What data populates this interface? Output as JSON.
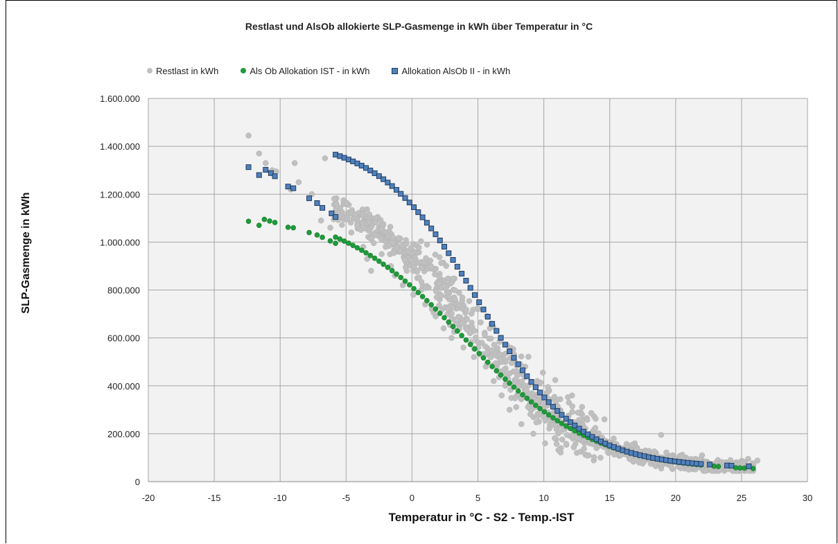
{
  "chart_data": {
    "type": "scatter",
    "title": "Restlast und AlsOb allokierte SLP-Gasmenge in kWh über Temperatur in °C",
    "xlabel": "Temperatur in °C - S2 - Temp.-IST",
    "ylabel": "SLP-Gasmenge in kWh",
    "xlim": [
      -20,
      30
    ],
    "ylim": [
      0,
      1600000
    ],
    "x_ticks": [
      "-20",
      "-15",
      "-10",
      "-5",
      "0",
      "5",
      "10",
      "15",
      "20",
      "25",
      "30"
    ],
    "y_ticks": [
      "0",
      "200.000",
      "400.000",
      "600.000",
      "800.000",
      "1.000.000",
      "1.200.000",
      "1.400.000",
      "1.600.000"
    ],
    "grid": true,
    "legend_position": "top-left",
    "colors": {
      "restlast": "#c0c0c0",
      "ist": "#1e9b3a",
      "alsob2": "#4f81bd",
      "plot_bg": "#f2f2f2"
    },
    "series": [
      {
        "name": "Restlast in kWh",
        "marker": "circle",
        "points": [
          [
            -12.4,
            1445000
          ],
          [
            -11.6,
            1370000
          ],
          [
            -11.1,
            1330000
          ],
          [
            -10.6,
            1300000
          ],
          [
            -10.3,
            1295000
          ],
          [
            -9.2,
            1220000
          ],
          [
            -8.9,
            1330000
          ],
          [
            -8.6,
            1250000
          ],
          [
            -7.6,
            1200000
          ],
          [
            -6.6,
            1350000
          ],
          [
            -6.9,
            1090000
          ],
          [
            -6.2,
            1060000
          ],
          [
            -5.6,
            1130000
          ],
          [
            -5.1,
            1100000
          ],
          [
            -4.6,
            1040000
          ],
          [
            -4.1,
            1070000
          ],
          [
            -3.7,
            980000
          ],
          [
            -3.4,
            930000
          ],
          [
            -3.1,
            880000
          ],
          [
            -2.6,
            1105000
          ],
          [
            -2.3,
            950000
          ],
          [
            -2.0,
            980000
          ],
          [
            -1.6,
            900000
          ],
          [
            -1.3,
            860000
          ],
          [
            -1.0,
            960000
          ],
          [
            -0.7,
            820000
          ],
          [
            -0.4,
            880000
          ],
          [
            -0.2,
            940000
          ],
          [
            0.1,
            780000
          ],
          [
            0.4,
            850000
          ],
          [
            0.7,
            800000
          ],
          [
            1.0,
            740000
          ],
          [
            1.3,
            890000
          ],
          [
            1.5,
            720000
          ],
          [
            1.8,
            690000
          ],
          [
            2.1,
            760000
          ],
          [
            2.4,
            640000
          ],
          [
            2.7,
            700000
          ],
          [
            3.0,
            600000
          ],
          [
            3.3,
            740000
          ],
          [
            3.6,
            650000
          ],
          [
            3.9,
            560000
          ],
          [
            4.1,
            680000
          ],
          [
            4.4,
            620000
          ],
          [
            4.7,
            520000
          ],
          [
            5.0,
            720000
          ],
          [
            5.3,
            580000
          ],
          [
            5.6,
            480000
          ],
          [
            5.9,
            640000
          ],
          [
            6.2,
            420000
          ],
          [
            6.5,
            540000
          ],
          [
            6.8,
            360000
          ],
          [
            7.1,
            500000
          ],
          [
            7.4,
            300000
          ],
          [
            7.7,
            460000
          ],
          [
            8.0,
            400000
          ],
          [
            8.3,
            240000
          ],
          [
            8.6,
            360000
          ],
          [
            8.9,
            320000
          ],
          [
            9.2,
            200000
          ],
          [
            9.5,
            420000
          ],
          [
            9.8,
            280000
          ],
          [
            10.1,
            160000
          ],
          [
            10.4,
            380000
          ],
          [
            10.7,
            240000
          ],
          [
            11.0,
            300000
          ],
          [
            11.3,
            140000
          ],
          [
            11.6,
            220000
          ],
          [
            11.9,
            330000
          ],
          [
            12.2,
            180000
          ],
          [
            12.5,
            120000
          ],
          [
            12.8,
            250000
          ],
          [
            13.1,
            160000
          ],
          [
            13.4,
            110000
          ],
          [
            13.7,
            210000
          ],
          [
            14.0,
            140000
          ],
          [
            14.3,
            100000
          ],
          [
            14.6,
            260000
          ],
          [
            14.9,
            120000
          ],
          [
            15.3,
            180000
          ],
          [
            15.7,
            110000
          ],
          [
            16.1,
            140000
          ],
          [
            16.5,
            95000
          ],
          [
            16.9,
            160000
          ],
          [
            17.3,
            100000
          ],
          [
            17.7,
            130000
          ],
          [
            18.1,
            90000
          ],
          [
            18.5,
            120000
          ],
          [
            18.9,
            195000
          ],
          [
            19.3,
            95000
          ],
          [
            19.8,
            110000
          ],
          [
            20.3,
            85000
          ],
          [
            20.8,
            100000
          ],
          [
            21.4,
            80000
          ],
          [
            22.0,
            110000
          ],
          [
            22.6,
            75000
          ],
          [
            23.2,
            90000
          ],
          [
            23.8,
            80000
          ],
          [
            24.4,
            70000
          ],
          [
            25.0,
            80000
          ],
          [
            25.5,
            95000
          ],
          [
            25.9,
            70000
          ],
          [
            26.2,
            88000
          ]
        ]
      },
      {
        "name": "Als Ob Allokation IST - in kWh",
        "marker": "circle",
        "curve": {
          "type": "sigmoid",
          "A": 42000,
          "B": 1110000,
          "k": 0.205,
          "t0": 4.0,
          "d": 0.33
        },
        "x_range": [
          -12.4,
          26.2
        ],
        "points": [
          [
            -12.4,
            1087000
          ],
          [
            -11.6,
            1070000
          ],
          [
            -11.2,
            1095000
          ],
          [
            -10.8,
            1088000
          ],
          [
            -10.4,
            1082000
          ],
          [
            -9.4,
            1062000
          ],
          [
            -9.0,
            1060000
          ],
          [
            -7.8,
            1040000
          ],
          [
            -7.2,
            1030000
          ],
          [
            -6.8,
            1020000
          ],
          [
            -6.2,
            1005000
          ],
          [
            -5.8,
            995000
          ]
        ]
      },
      {
        "name": "Allokation AlsOb II - in kWh",
        "marker": "square",
        "curve": {
          "type": "sigmoid",
          "A": 58000,
          "B": 1380000,
          "k": 0.265,
          "t0": 5.1,
          "d": 0.33
        },
        "x_range": [
          -12.4,
          26.2
        ],
        "points": [
          [
            -12.4,
            1313000
          ],
          [
            -11.6,
            1280000
          ],
          [
            -11.1,
            1302000
          ],
          [
            -10.7,
            1288000
          ],
          [
            -10.4,
            1275000
          ],
          [
            -9.4,
            1232000
          ],
          [
            -9.0,
            1225000
          ],
          [
            -7.8,
            1183000
          ],
          [
            -7.2,
            1163000
          ],
          [
            -6.8,
            1143000
          ],
          [
            -6.1,
            1120000
          ],
          [
            -5.8,
            1105000
          ]
        ]
      }
    ]
  }
}
